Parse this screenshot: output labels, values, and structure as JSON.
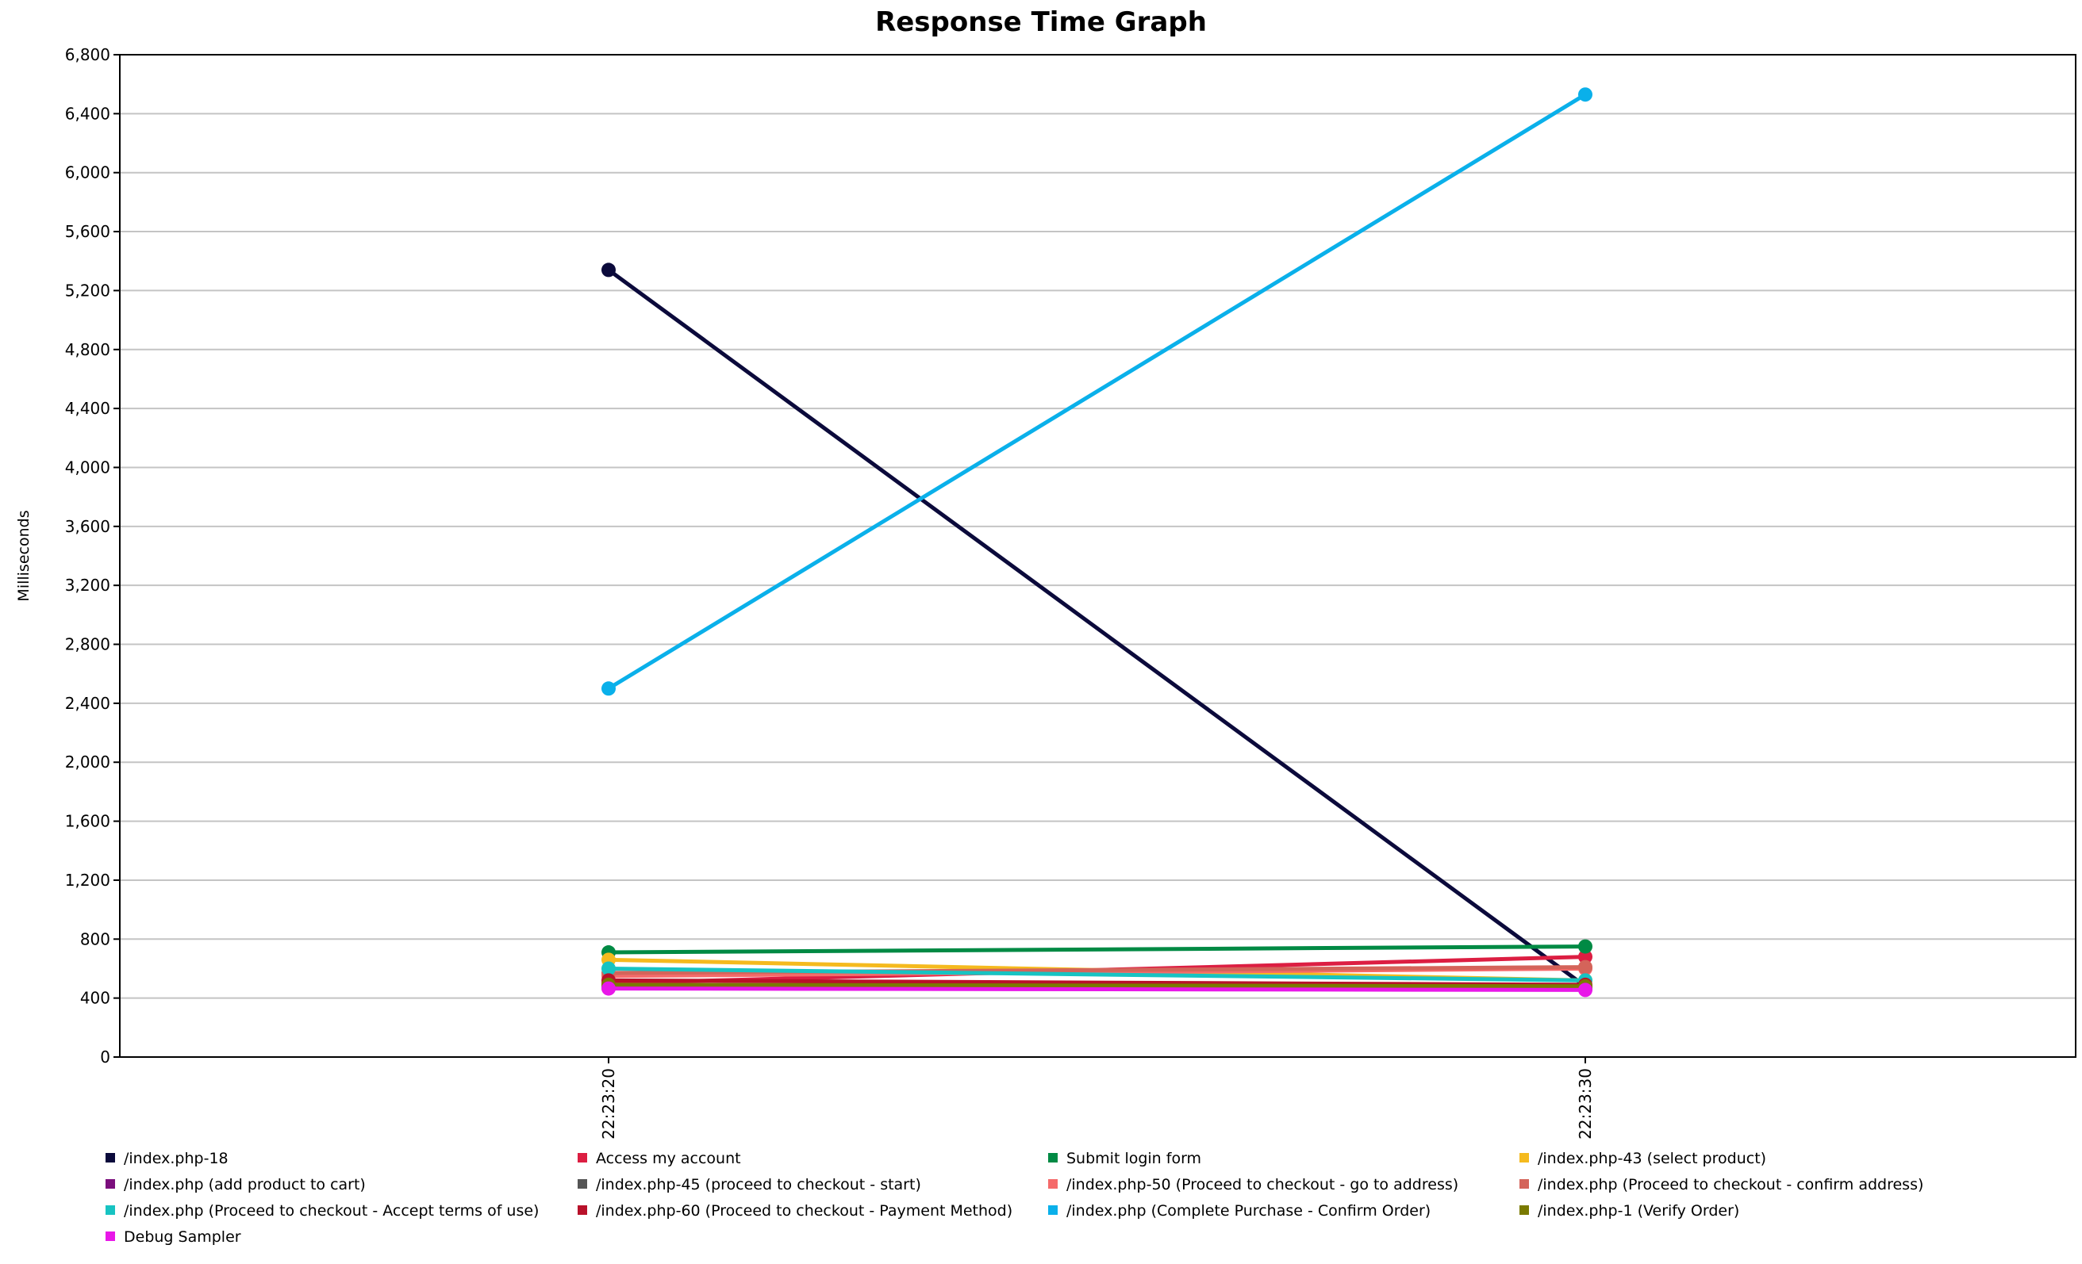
{
  "chart_data": {
    "type": "line",
    "title": "Response Time Graph",
    "xlabel": "",
    "ylabel": "Milliseconds",
    "x": [
      "22:23:20",
      "22:23:30"
    ],
    "ylim": [
      0,
      6800
    ],
    "yticks": [
      0,
      400,
      800,
      1200,
      1600,
      2000,
      2400,
      2800,
      3200,
      3600,
      4000,
      4400,
      4800,
      5200,
      5600,
      6000,
      6400,
      6800
    ],
    "ytick_labels": [
      "0",
      "400",
      "800",
      "1,200",
      "1,600",
      "2,000",
      "2,400",
      "2,800",
      "3,200",
      "3,600",
      "4,000",
      "4,400",
      "4,800",
      "5,200",
      "5,600",
      "6,000",
      "6,400",
      "6,800"
    ],
    "grid": true,
    "legend_position": "bottom",
    "series": [
      {
        "name": "/index.php-18",
        "color": "#0b0a3b",
        "values": [
          5340,
          480
        ]
      },
      {
        "name": "Access my account",
        "color": "#dc1e42",
        "values": [
          500,
          680
        ]
      },
      {
        "name": "Submit login form",
        "color": "#008a44",
        "values": [
          710,
          750
        ]
      },
      {
        "name": "/index.php-43 (select product)",
        "color": "#f5ba1e",
        "values": [
          660,
          520
        ]
      },
      {
        "name": "/index.php (add product to cart)",
        "color": "#7b0e7d",
        "values": [
          470,
          460
        ]
      },
      {
        "name": "/index.php-45 (proceed to checkout - start)",
        "color": "#555555",
        "values": [
          480,
          470
        ]
      },
      {
        "name": "/index.php-50 (Proceed to checkout - go to address)",
        "color": "#f56a6a",
        "values": [
          550,
          600
        ]
      },
      {
        "name": "/index.php (Proceed to checkout - confirm address)",
        "color": "#d4645a",
        "values": [
          570,
          610
        ]
      },
      {
        "name": "/index.php (Proceed to checkout - Accept terms of use)",
        "color": "#17c3c2",
        "values": [
          600,
          520
        ]
      },
      {
        "name": "/index.php-60  (Proceed to checkout - Payment Method)",
        "color": "#b8112a",
        "values": [
          520,
          490
        ]
      },
      {
        "name": "/index.php (Complete Purchase - Confirm Order)",
        "color": "#0ab0ea",
        "values": [
          2500,
          6530
        ]
      },
      {
        "name": "/index.php-1 (Verify Order)",
        "color": "#7a7a00",
        "values": [
          490,
          480
        ]
      },
      {
        "name": "Debug Sampler",
        "color": "#e817e8",
        "values": [
          465,
          455
        ]
      }
    ]
  }
}
